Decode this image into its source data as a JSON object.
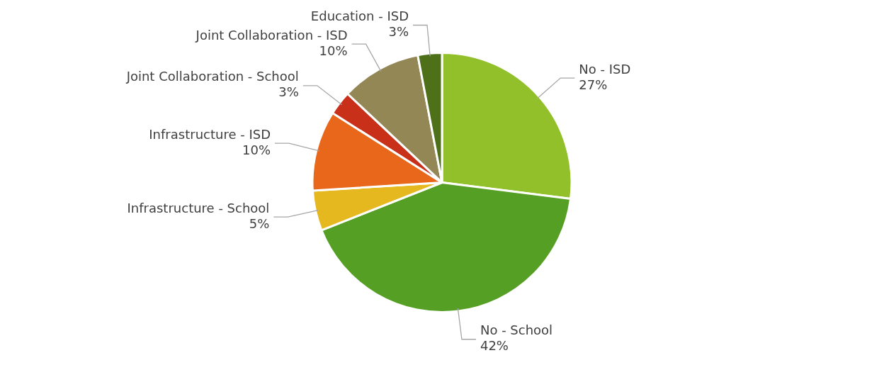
{
  "chart_data": {
    "type": "pie",
    "categories": [
      "No - ISD",
      "No - School",
      "Infrastructure - School",
      "Infrastructure - ISD",
      "Joint Collaboration - School",
      "Joint Collaboration - ISD",
      "Education - ISD"
    ],
    "values": [
      27,
      42,
      5,
      10,
      3,
      10,
      3
    ],
    "colors": [
      "#92c02a",
      "#55a024",
      "#e6b820",
      "#e8671a",
      "#c8301a",
      "#938755",
      "#4e7019"
    ],
    "value_labels": [
      "27%",
      "42%",
      "5%",
      "10%",
      "3%",
      "10%",
      "3%"
    ],
    "legend": false
  }
}
